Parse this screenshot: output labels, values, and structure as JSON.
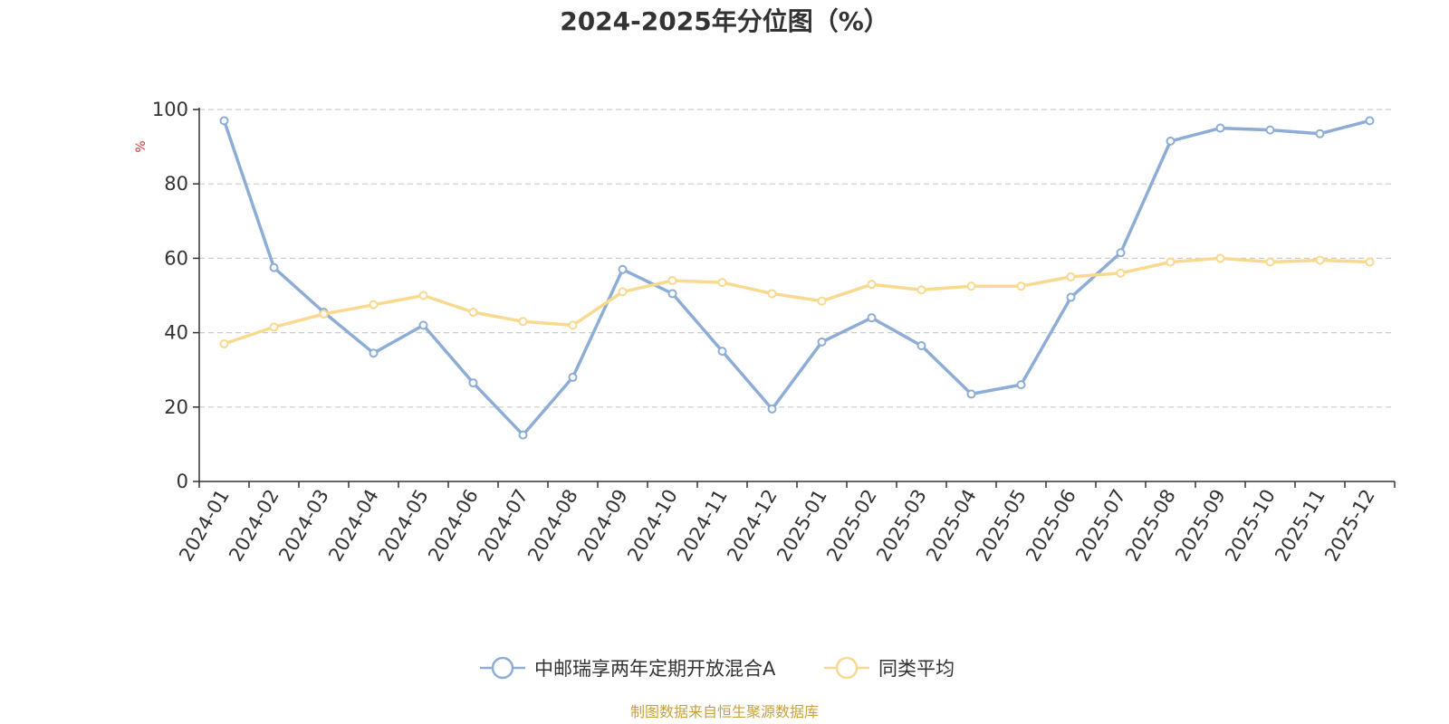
{
  "chart_data": {
    "type": "line",
    "title": "2024-2025年分位图（%）",
    "ylabel": "%",
    "xlabel": "",
    "ylim": [
      0,
      100
    ],
    "yticks": [
      0,
      20,
      40,
      60,
      80,
      100
    ],
    "grid": true,
    "legend_position": "bottom",
    "x": [
      "2024-01",
      "2024-02",
      "2024-03",
      "2024-04",
      "2024-05",
      "2024-06",
      "2024-07",
      "2024-08",
      "2024-09",
      "2024-10",
      "2024-11",
      "2024-12",
      "2025-01",
      "2025-02",
      "2025-03",
      "2025-04",
      "2025-05",
      "2025-06",
      "2025-07",
      "2025-08",
      "2025-09",
      "2025-10",
      "2025-11",
      "2025-12"
    ],
    "series": [
      {
        "name": "中邮瑞享两年定期开放混合A",
        "color": "#8eadd6",
        "values": [
          97,
          57.5,
          45.5,
          34.5,
          42,
          26.5,
          12.5,
          28,
          57,
          50.5,
          35,
          19.5,
          37.5,
          44,
          36.5,
          23.5,
          26,
          49.5,
          61.5,
          91.5,
          95,
          94.5,
          93.5,
          97
        ]
      },
      {
        "name": "同类平均",
        "color": "#f9d98f",
        "values": [
          37,
          41.5,
          45,
          47.5,
          50,
          45.5,
          43,
          42,
          51,
          54,
          53.5,
          50.5,
          48.5,
          53,
          51.5,
          52.5,
          52.5,
          55,
          56,
          59,
          60,
          59,
          59.5,
          59
        ]
      }
    ]
  },
  "source_text": "制图数据来自恒生聚源数据库",
  "colors": {
    "axis": "#333333",
    "grid": "#cccccc",
    "ylabel": "#e03030",
    "source": "#c8a040"
  }
}
